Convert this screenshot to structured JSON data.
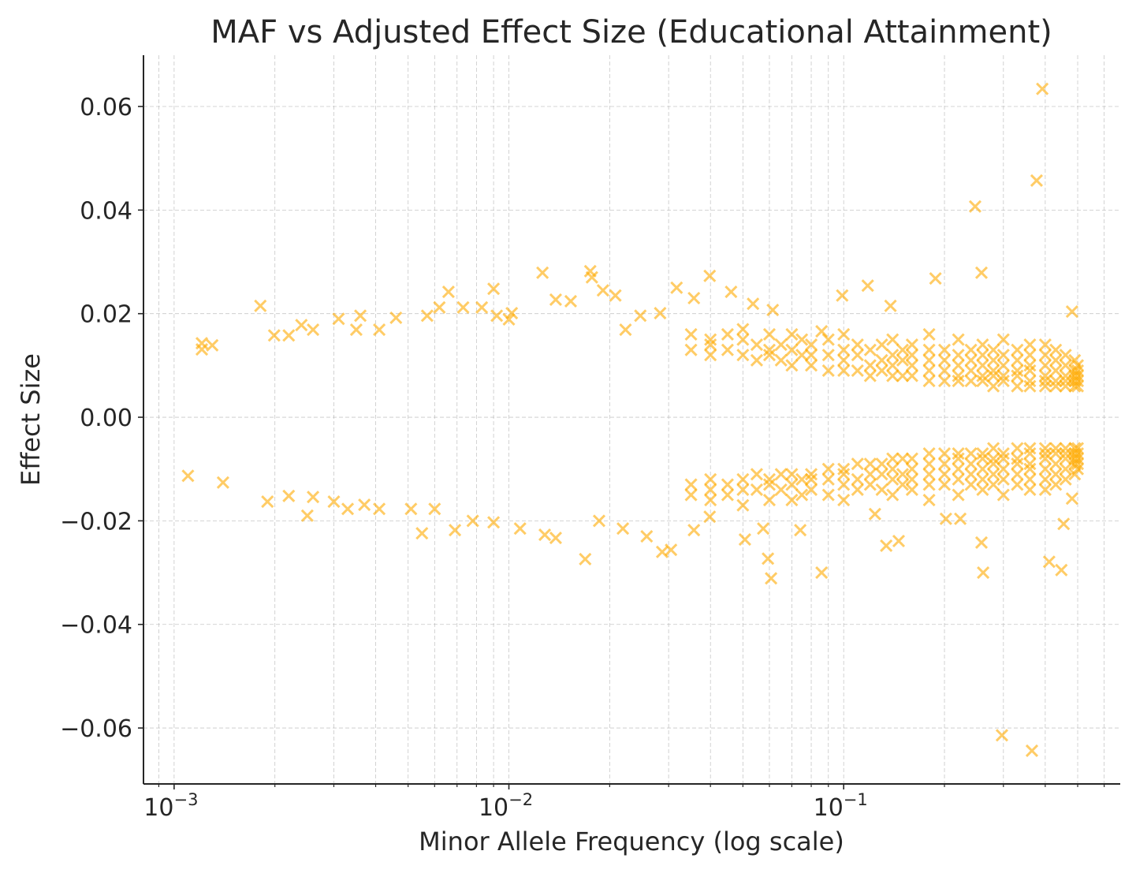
{
  "chart_data": {
    "type": "scatter",
    "title": "MAF vs Adjusted Effect Size (Educational Attainment)",
    "xlabel": "Minor Allele Frequency (log scale)",
    "ylabel": "Effect Size",
    "xscale": "log",
    "xlim": [
      0.00081,
      0.67
    ],
    "ylim": [
      -0.0708,
      0.0699
    ],
    "xticks": [
      0.001,
      0.01,
      0.1
    ],
    "xtick_labels": [
      {
        "base": "10",
        "exp": "−3"
      },
      {
        "base": "10",
        "exp": "−2"
      },
      {
        "base": "10",
        "exp": "−1"
      }
    ],
    "yticks": [
      0.06,
      0.04,
      0.02,
      0.0,
      -0.02,
      -0.04,
      -0.06
    ],
    "ytick_labels": [
      "0.06",
      "0.04",
      "0.02",
      "0.00",
      "−0.02",
      "−0.04",
      "−0.06"
    ],
    "grid": true,
    "marker": "x",
    "color": "#FFAA00",
    "points": [
      [
        0.00121,
        0.0143
      ],
      [
        0.00121,
        0.0131
      ],
      [
        0.0013,
        0.0139
      ],
      [
        0.00181,
        0.0215
      ],
      [
        0.00199,
        0.0158
      ],
      [
        0.0022,
        0.0158
      ],
      [
        0.0024,
        0.0178
      ],
      [
        0.0026,
        0.0169
      ],
      [
        0.0031,
        0.019
      ],
      [
        0.0035,
        0.0169
      ],
      [
        0.0036,
        0.0196
      ],
      [
        0.0041,
        0.0169
      ],
      [
        0.0046,
        0.0192
      ],
      [
        0.0057,
        0.0196
      ],
      [
        0.0062,
        0.0212
      ],
      [
        0.0066,
        0.0242
      ],
      [
        0.0073,
        0.0212
      ],
      [
        0.0083,
        0.0212
      ],
      [
        0.009,
        0.0248
      ],
      [
        0.0092,
        0.0196
      ],
      [
        0.01,
        0.0189
      ],
      [
        0.0102,
        0.0201
      ],
      [
        0.0126,
        0.0279
      ],
      [
        0.0138,
        0.0227
      ],
      [
        0.0153,
        0.0224
      ],
      [
        0.0175,
        0.0282
      ],
      [
        0.0177,
        0.027
      ],
      [
        0.0191,
        0.0245
      ],
      [
        0.0208,
        0.0235
      ],
      [
        0.0223,
        0.0169
      ],
      [
        0.0247,
        0.0196
      ],
      [
        0.0283,
        0.0201
      ],
      [
        0.0317,
        0.025
      ],
      [
        0.0357,
        0.023
      ],
      [
        0.0398,
        0.0273
      ],
      [
        0.0461,
        0.0242
      ],
      [
        0.0536,
        0.0219
      ],
      [
        0.0614,
        0.0207
      ],
      [
        0.0859,
        0.0166
      ],
      [
        0.099,
        0.0235
      ],
      [
        0.118,
        0.0254
      ],
      [
        0.138,
        0.0215
      ],
      [
        0.188,
        0.0268
      ],
      [
        0.247,
        0.0407
      ],
      [
        0.258,
        0.0279
      ],
      [
        0.377,
        0.0457
      ],
      [
        0.392,
        0.0634
      ],
      [
        0.481,
        0.0204
      ],
      [
        0.0011,
        -0.0113
      ],
      [
        0.0014,
        -0.0126
      ],
      [
        0.0019,
        -0.0163
      ],
      [
        0.0022,
        -0.0152
      ],
      [
        0.0025,
        -0.019
      ],
      [
        0.0026,
        -0.0154
      ],
      [
        0.003,
        -0.0163
      ],
      [
        0.0033,
        -0.0177
      ],
      [
        0.0037,
        -0.0169
      ],
      [
        0.0041,
        -0.0177
      ],
      [
        0.0051,
        -0.0177
      ],
      [
        0.0055,
        -0.0224
      ],
      [
        0.006,
        -0.0177
      ],
      [
        0.0069,
        -0.0218
      ],
      [
        0.0078,
        -0.02
      ],
      [
        0.009,
        -0.0203
      ],
      [
        0.0108,
        -0.0215
      ],
      [
        0.0128,
        -0.0227
      ],
      [
        0.0138,
        -0.0233
      ],
      [
        0.0169,
        -0.0274
      ],
      [
        0.0186,
        -0.02
      ],
      [
        0.0219,
        -0.0215
      ],
      [
        0.0258,
        -0.023
      ],
      [
        0.0287,
        -0.026
      ],
      [
        0.0305,
        -0.0256
      ],
      [
        0.0357,
        -0.0218
      ],
      [
        0.0398,
        -0.0192
      ],
      [
        0.0507,
        -0.0236
      ],
      [
        0.0575,
        -0.0215
      ],
      [
        0.0594,
        -0.0273
      ],
      [
        0.0607,
        -0.0311
      ],
      [
        0.0742,
        -0.0218
      ],
      [
        0.0859,
        -0.03
      ],
      [
        0.124,
        -0.0187
      ],
      [
        0.134,
        -0.0248
      ],
      [
        0.146,
        -0.0239
      ],
      [
        0.202,
        -0.0196
      ],
      [
        0.223,
        -0.0196
      ],
      [
        0.258,
        -0.0242
      ],
      [
        0.261,
        -0.03
      ],
      [
        0.297,
        -0.0614
      ],
      [
        0.365,
        -0.0644
      ],
      [
        0.411,
        -0.0279
      ],
      [
        0.447,
        -0.0295
      ],
      [
        0.454,
        -0.0206
      ],
      [
        0.481,
        -0.0157
      ],
      [
        0.035,
        0.016
      ],
      [
        0.035,
        0.013
      ],
      [
        0.04,
        0.015
      ],
      [
        0.04,
        0.012
      ],
      [
        0.04,
        0.014
      ],
      [
        0.045,
        0.013
      ],
      [
        0.045,
        0.016
      ],
      [
        0.05,
        0.012
      ],
      [
        0.05,
        0.015
      ],
      [
        0.05,
        0.017
      ],
      [
        0.055,
        0.011
      ],
      [
        0.055,
        0.014
      ],
      [
        0.06,
        0.012
      ],
      [
        0.06,
        0.016
      ],
      [
        0.06,
        0.013
      ],
      [
        0.065,
        0.011
      ],
      [
        0.065,
        0.014
      ],
      [
        0.07,
        0.01
      ],
      [
        0.07,
        0.013
      ],
      [
        0.07,
        0.016
      ],
      [
        0.075,
        0.012
      ],
      [
        0.075,
        0.015
      ],
      [
        0.08,
        0.01
      ],
      [
        0.08,
        0.012
      ],
      [
        0.08,
        0.014
      ],
      [
        0.09,
        0.009
      ],
      [
        0.09,
        0.012
      ],
      [
        0.09,
        0.015
      ],
      [
        0.1,
        0.009
      ],
      [
        0.1,
        0.011
      ],
      [
        0.1,
        0.013
      ],
      [
        0.1,
        0.016
      ],
      [
        0.11,
        0.009
      ],
      [
        0.11,
        0.012
      ],
      [
        0.11,
        0.014
      ],
      [
        0.12,
        0.008
      ],
      [
        0.12,
        0.01
      ],
      [
        0.12,
        0.013
      ],
      [
        0.13,
        0.009
      ],
      [
        0.13,
        0.011
      ],
      [
        0.13,
        0.014
      ],
      [
        0.14,
        0.008
      ],
      [
        0.14,
        0.01
      ],
      [
        0.14,
        0.012
      ],
      [
        0.14,
        0.015
      ],
      [
        0.15,
        0.008
      ],
      [
        0.15,
        0.011
      ],
      [
        0.15,
        0.013
      ],
      [
        0.16,
        0.008
      ],
      [
        0.16,
        0.01
      ],
      [
        0.16,
        0.012
      ],
      [
        0.16,
        0.014
      ],
      [
        0.18,
        0.007
      ],
      [
        0.18,
        0.009
      ],
      [
        0.18,
        0.011
      ],
      [
        0.18,
        0.013
      ],
      [
        0.18,
        0.016
      ],
      [
        0.2,
        0.007
      ],
      [
        0.2,
        0.009
      ],
      [
        0.2,
        0.011
      ],
      [
        0.2,
        0.013
      ],
      [
        0.22,
        0.007
      ],
      [
        0.22,
        0.008
      ],
      [
        0.22,
        0.01
      ],
      [
        0.22,
        0.012
      ],
      [
        0.22,
        0.015
      ],
      [
        0.24,
        0.007
      ],
      [
        0.24,
        0.009
      ],
      [
        0.24,
        0.011
      ],
      [
        0.24,
        0.013
      ],
      [
        0.26,
        0.007
      ],
      [
        0.26,
        0.008
      ],
      [
        0.26,
        0.01
      ],
      [
        0.26,
        0.012
      ],
      [
        0.26,
        0.014
      ],
      [
        0.28,
        0.006
      ],
      [
        0.28,
        0.008
      ],
      [
        0.28,
        0.009
      ],
      [
        0.28,
        0.011
      ],
      [
        0.28,
        0.013
      ],
      [
        0.3,
        0.007
      ],
      [
        0.3,
        0.008
      ],
      [
        0.3,
        0.01
      ],
      [
        0.3,
        0.012
      ],
      [
        0.3,
        0.015
      ],
      [
        0.33,
        0.006
      ],
      [
        0.33,
        0.008
      ],
      [
        0.33,
        0.009
      ],
      [
        0.33,
        0.011
      ],
      [
        0.33,
        0.013
      ],
      [
        0.36,
        0.006
      ],
      [
        0.36,
        0.007
      ],
      [
        0.36,
        0.009
      ],
      [
        0.36,
        0.01
      ],
      [
        0.36,
        0.012
      ],
      [
        0.36,
        0.014
      ],
      [
        0.4,
        0.006
      ],
      [
        0.4,
        0.007
      ],
      [
        0.4,
        0.008
      ],
      [
        0.4,
        0.01
      ],
      [
        0.4,
        0.012
      ],
      [
        0.4,
        0.014
      ],
      [
        0.43,
        0.006
      ],
      [
        0.43,
        0.007
      ],
      [
        0.43,
        0.009
      ],
      [
        0.43,
        0.011
      ],
      [
        0.43,
        0.013
      ],
      [
        0.46,
        0.006
      ],
      [
        0.46,
        0.007
      ],
      [
        0.46,
        0.008
      ],
      [
        0.46,
        0.01
      ],
      [
        0.46,
        0.012
      ],
      [
        0.49,
        0.006
      ],
      [
        0.49,
        0.007
      ],
      [
        0.49,
        0.008
      ],
      [
        0.49,
        0.009
      ],
      [
        0.49,
        0.011
      ],
      [
        0.5,
        0.006
      ],
      [
        0.5,
        0.007
      ],
      [
        0.5,
        0.008
      ],
      [
        0.5,
        0.009
      ],
      [
        0.5,
        0.01
      ],
      [
        0.035,
        -0.015
      ],
      [
        0.035,
        -0.013
      ],
      [
        0.04,
        -0.014
      ],
      [
        0.04,
        -0.012
      ],
      [
        0.04,
        -0.016
      ],
      [
        0.045,
        -0.013
      ],
      [
        0.045,
        -0.015
      ],
      [
        0.05,
        -0.012
      ],
      [
        0.05,
        -0.014
      ],
      [
        0.05,
        -0.017
      ],
      [
        0.055,
        -0.011
      ],
      [
        0.055,
        -0.014
      ],
      [
        0.06,
        -0.012
      ],
      [
        0.06,
        -0.016
      ],
      [
        0.06,
        -0.013
      ],
      [
        0.065,
        -0.011
      ],
      [
        0.065,
        -0.014
      ],
      [
        0.07,
        -0.011
      ],
      [
        0.07,
        -0.013
      ],
      [
        0.07,
        -0.016
      ],
      [
        0.075,
        -0.012
      ],
      [
        0.075,
        -0.015
      ],
      [
        0.08,
        -0.011
      ],
      [
        0.08,
        -0.012
      ],
      [
        0.08,
        -0.014
      ],
      [
        0.09,
        -0.01
      ],
      [
        0.09,
        -0.012
      ],
      [
        0.09,
        -0.015
      ],
      [
        0.1,
        -0.01
      ],
      [
        0.1,
        -0.011
      ],
      [
        0.1,
        -0.013
      ],
      [
        0.1,
        -0.016
      ],
      [
        0.11,
        -0.009
      ],
      [
        0.11,
        -0.012
      ],
      [
        0.11,
        -0.014
      ],
      [
        0.12,
        -0.009
      ],
      [
        0.12,
        -0.011
      ],
      [
        0.12,
        -0.013
      ],
      [
        0.13,
        -0.009
      ],
      [
        0.13,
        -0.011
      ],
      [
        0.13,
        -0.014
      ],
      [
        0.14,
        -0.008
      ],
      [
        0.14,
        -0.01
      ],
      [
        0.14,
        -0.012
      ],
      [
        0.14,
        -0.015
      ],
      [
        0.15,
        -0.008
      ],
      [
        0.15,
        -0.011
      ],
      [
        0.15,
        -0.013
      ],
      [
        0.16,
        -0.008
      ],
      [
        0.16,
        -0.01
      ],
      [
        0.16,
        -0.012
      ],
      [
        0.16,
        -0.014
      ],
      [
        0.18,
        -0.007
      ],
      [
        0.18,
        -0.009
      ],
      [
        0.18,
        -0.011
      ],
      [
        0.18,
        -0.013
      ],
      [
        0.18,
        -0.016
      ],
      [
        0.2,
        -0.007
      ],
      [
        0.2,
        -0.009
      ],
      [
        0.2,
        -0.011
      ],
      [
        0.2,
        -0.013
      ],
      [
        0.22,
        -0.007
      ],
      [
        0.22,
        -0.008
      ],
      [
        0.22,
        -0.01
      ],
      [
        0.22,
        -0.012
      ],
      [
        0.22,
        -0.015
      ],
      [
        0.24,
        -0.007
      ],
      [
        0.24,
        -0.009
      ],
      [
        0.24,
        -0.011
      ],
      [
        0.24,
        -0.013
      ],
      [
        0.26,
        -0.007
      ],
      [
        0.26,
        -0.008
      ],
      [
        0.26,
        -0.01
      ],
      [
        0.26,
        -0.012
      ],
      [
        0.26,
        -0.014
      ],
      [
        0.28,
        -0.006
      ],
      [
        0.28,
        -0.008
      ],
      [
        0.28,
        -0.009
      ],
      [
        0.28,
        -0.011
      ],
      [
        0.28,
        -0.013
      ],
      [
        0.3,
        -0.007
      ],
      [
        0.3,
        -0.008
      ],
      [
        0.3,
        -0.01
      ],
      [
        0.3,
        -0.012
      ],
      [
        0.3,
        -0.015
      ],
      [
        0.33,
        -0.006
      ],
      [
        0.33,
        -0.008
      ],
      [
        0.33,
        -0.009
      ],
      [
        0.33,
        -0.011
      ],
      [
        0.33,
        -0.013
      ],
      [
        0.36,
        -0.006
      ],
      [
        0.36,
        -0.007
      ],
      [
        0.36,
        -0.009
      ],
      [
        0.36,
        -0.01
      ],
      [
        0.36,
        -0.012
      ],
      [
        0.36,
        -0.014
      ],
      [
        0.4,
        -0.006
      ],
      [
        0.4,
        -0.007
      ],
      [
        0.4,
        -0.008
      ],
      [
        0.4,
        -0.01
      ],
      [
        0.4,
        -0.012
      ],
      [
        0.4,
        -0.014
      ],
      [
        0.43,
        -0.006
      ],
      [
        0.43,
        -0.007
      ],
      [
        0.43,
        -0.009
      ],
      [
        0.43,
        -0.011
      ],
      [
        0.43,
        -0.013
      ],
      [
        0.46,
        -0.006
      ],
      [
        0.46,
        -0.007
      ],
      [
        0.46,
        -0.008
      ],
      [
        0.46,
        -0.01
      ],
      [
        0.46,
        -0.012
      ],
      [
        0.49,
        -0.006
      ],
      [
        0.49,
        -0.007
      ],
      [
        0.49,
        -0.008
      ],
      [
        0.49,
        -0.009
      ],
      [
        0.49,
        -0.011
      ],
      [
        0.5,
        -0.006
      ],
      [
        0.5,
        -0.007
      ],
      [
        0.5,
        -0.008
      ],
      [
        0.5,
        -0.009
      ],
      [
        0.5,
        -0.01
      ]
    ]
  }
}
